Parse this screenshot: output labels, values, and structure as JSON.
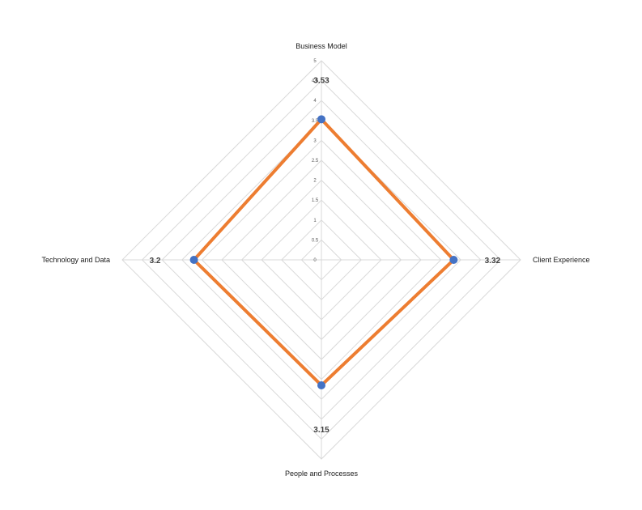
{
  "chart_data": {
    "type": "radar",
    "axes": [
      "Business Model",
      "Client Experience",
      "People and Processes",
      "Technology and Data"
    ],
    "series": [
      {
        "values": [
          3.53,
          3.32,
          3.15,
          3.2
        ]
      }
    ],
    "data_labels": [
      "3.53",
      "3.32",
      "3.15",
      "3.2"
    ],
    "range": [
      0,
      5
    ],
    "ticks": [
      "0",
      "0.5",
      "1",
      "1.5",
      "2",
      "2.5",
      "3",
      "3.5",
      "4",
      "4.5",
      "5"
    ],
    "grid": true,
    "legend": "none",
    "colors": {
      "line": "#ed7d31",
      "marker": "#4472c4",
      "grid": "#d9d9d9"
    }
  }
}
